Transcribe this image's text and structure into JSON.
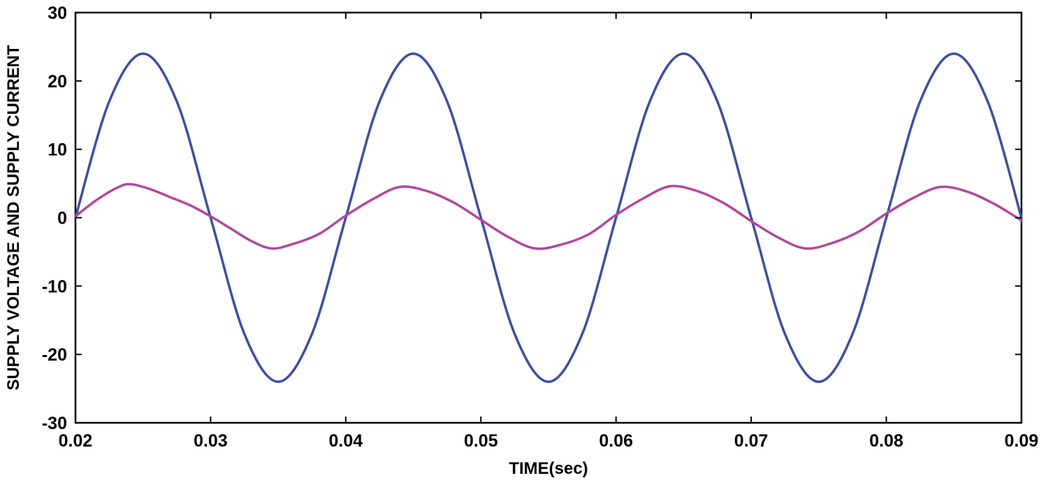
{
  "chart_data": {
    "type": "line",
    "title": "",
    "xlabel": "TIME(sec)",
    "ylabel": "SUPPLY VOLTAGE AND SUPPLY CURRENT",
    "xlim": [
      0.02,
      0.09
    ],
    "ylim": [
      -30,
      30
    ],
    "x_ticks": [
      0.02,
      0.03,
      0.04,
      0.05,
      0.06,
      0.07,
      0.08,
      0.09
    ],
    "x_tick_labels": [
      "0.02",
      "0.03",
      "0.04",
      "0.05",
      "0.06",
      "0.07",
      "0.08",
      "0.09"
    ],
    "y_ticks": [
      30,
      20,
      10,
      0,
      -10,
      -20,
      -30
    ],
    "y_tick_labels": [
      "30",
      "20",
      "10",
      "0",
      "-10",
      "-20",
      "-30"
    ],
    "grid": false,
    "legend": "none",
    "series": [
      {
        "color": "#3a4fa8",
        "x": [
          0.02,
          0.0225,
          0.025,
          0.0275,
          0.03,
          0.0325,
          0.035,
          0.0375,
          0.04,
          0.0425,
          0.045,
          0.0475,
          0.05,
          0.0525,
          0.055,
          0.0575,
          0.06,
          0.0625,
          0.065,
          0.0675,
          0.07,
          0.0725,
          0.075,
          0.0775,
          0.08,
          0.0825,
          0.085,
          0.0875,
          0.09
        ],
        "values": [
          0,
          17,
          24,
          17,
          0,
          -17,
          -24,
          -17,
          0,
          17,
          24,
          17,
          0,
          -17,
          -24,
          -17,
          0,
          17,
          24,
          17,
          0,
          -17,
          -24,
          -17,
          0,
          17,
          24,
          17,
          0
        ]
      },
      {
        "color": "#b2489e",
        "x": [
          0.02,
          0.0215,
          0.023,
          0.024,
          0.0255,
          0.027,
          0.0285,
          0.03,
          0.0315,
          0.033,
          0.0345,
          0.036,
          0.038,
          0.04,
          0.042,
          0.044,
          0.046,
          0.048,
          0.05,
          0.052,
          0.054,
          0.056,
          0.058,
          0.06,
          0.062,
          0.064,
          0.066,
          0.068,
          0.07,
          0.072,
          0.074,
          0.076,
          0.078,
          0.08,
          0.082,
          0.084,
          0.086,
          0.088,
          0.09
        ],
        "values": [
          0.2,
          2.5,
          4.3,
          4.9,
          4.2,
          3.0,
          1.8,
          0.2,
          -1.6,
          -3.4,
          -4.5,
          -3.9,
          -2.4,
          0.3,
          2.7,
          4.5,
          3.9,
          2.2,
          -0.3,
          -2.8,
          -4.5,
          -3.9,
          -2.4,
          0.4,
          2.8,
          4.6,
          3.9,
          2.1,
          -0.5,
          -2.9,
          -4.5,
          -3.7,
          -2.0,
          0.6,
          2.9,
          4.5,
          3.8,
          2.0,
          -0.4
        ]
      }
    ]
  }
}
